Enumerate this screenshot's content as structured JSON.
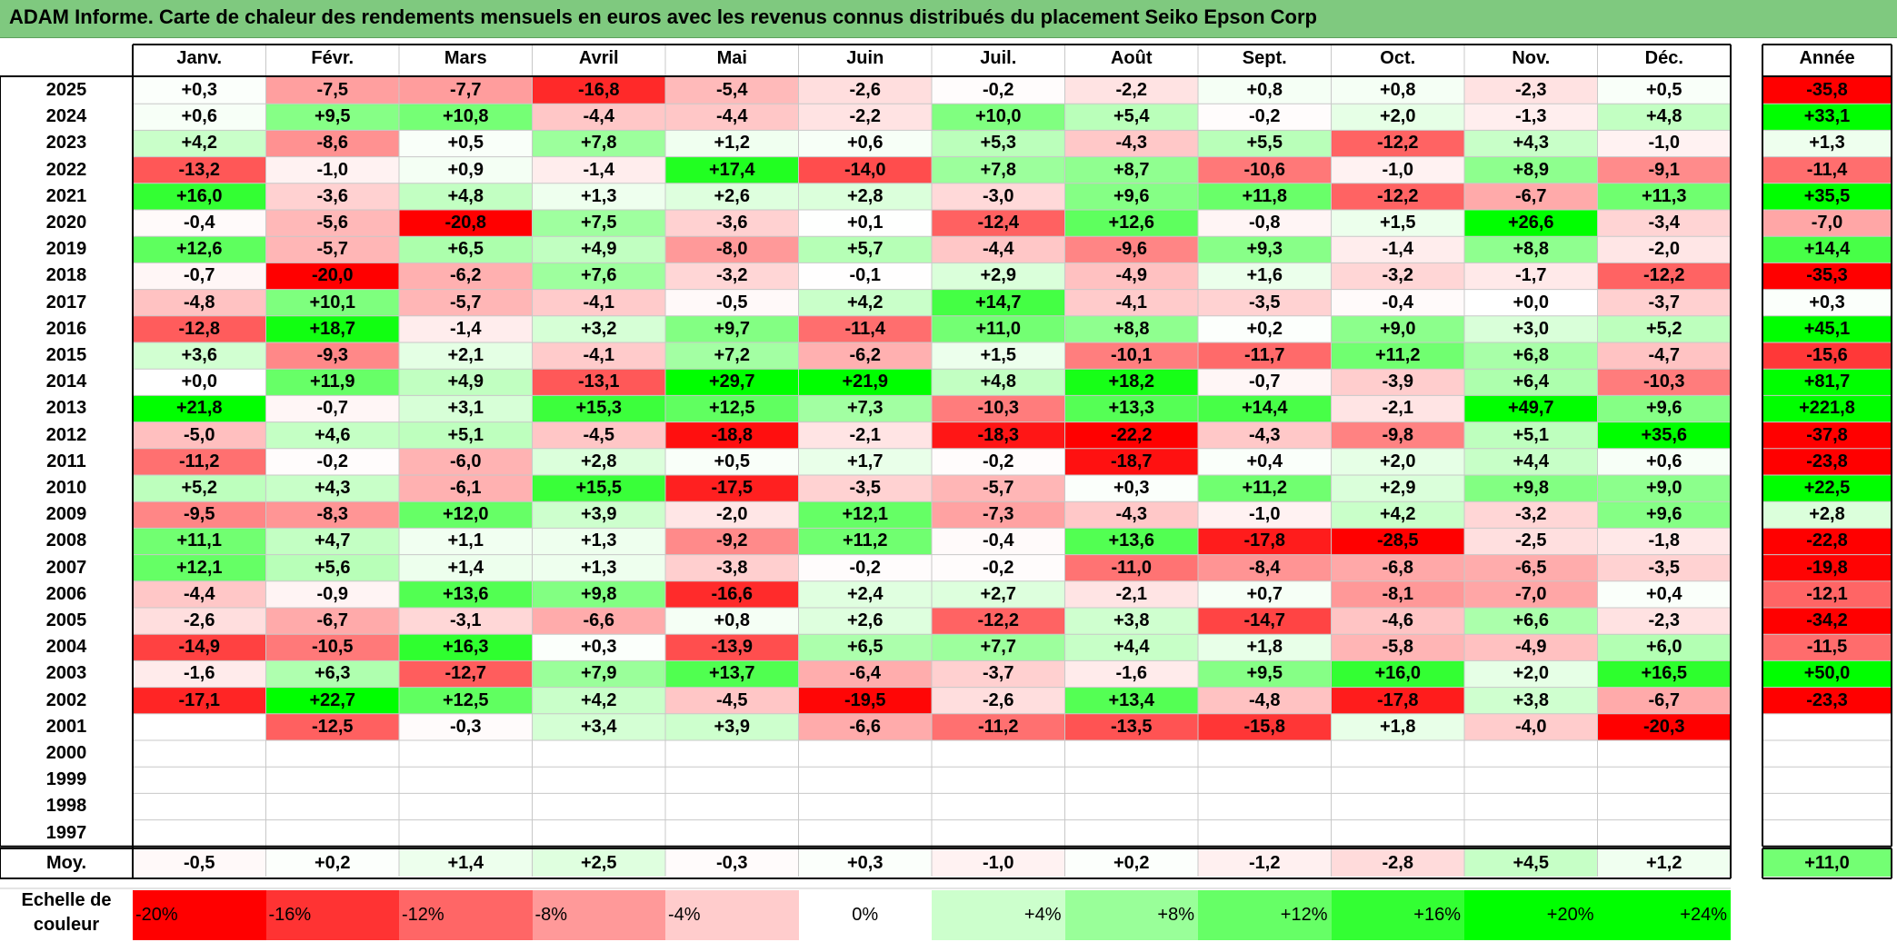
{
  "title": "ADAM Informe. Carte de chaleur des rendements mensuels en euros avec les revenus connus distribués du placement Seiko Epson Corp",
  "chart_data": {
    "type": "heatmap",
    "months": [
      "Janv.",
      "Févr.",
      "Mars",
      "Avril",
      "Mai",
      "Juin",
      "Juil.",
      "Août",
      "Sept.",
      "Oct.",
      "Nov.",
      "Déc."
    ],
    "annual_label": "Année",
    "years": [
      "2025",
      "2024",
      "2023",
      "2022",
      "2021",
      "2020",
      "2019",
      "2018",
      "2017",
      "2016",
      "2015",
      "2014",
      "2013",
      "2012",
      "2011",
      "2010",
      "2009",
      "2008",
      "2007",
      "2006",
      "2005",
      "2004",
      "2003",
      "2002",
      "2001",
      "2000",
      "1999",
      "1998",
      "1997"
    ],
    "values": [
      [
        "+0,3",
        "-7,5",
        "-7,7",
        "-16,8",
        "-5,4",
        "-2,6",
        "-0,2",
        "-2,2",
        "+0,8",
        "+0,8",
        "-2,3",
        "+0,5"
      ],
      [
        "+0,6",
        "+9,5",
        "+10,8",
        "-4,4",
        "-4,4",
        "-2,2",
        "+10,0",
        "+5,4",
        "-0,2",
        "+2,0",
        "-1,3",
        "+4,8"
      ],
      [
        "+4,2",
        "-8,6",
        "+0,5",
        "+7,8",
        "+1,2",
        "+0,6",
        "+5,3",
        "-4,3",
        "+5,5",
        "-12,2",
        "+4,3",
        "-1,0"
      ],
      [
        "-13,2",
        "-1,0",
        "+0,9",
        "-1,4",
        "+17,4",
        "-14,0",
        "+7,8",
        "+8,7",
        "-10,6",
        "-1,0",
        "+8,9",
        "-9,1"
      ],
      [
        "+16,0",
        "-3,6",
        "+4,8",
        "+1,3",
        "+2,6",
        "+2,8",
        "-3,0",
        "+9,6",
        "+11,8",
        "-12,2",
        "-6,7",
        "+11,3"
      ],
      [
        "-0,4",
        "-5,6",
        "-20,8",
        "+7,5",
        "-3,6",
        "+0,1",
        "-12,4",
        "+12,6",
        "-0,8",
        "+1,5",
        "+26,6",
        "-3,4"
      ],
      [
        "+12,6",
        "-5,7",
        "+6,5",
        "+4,9",
        "-8,0",
        "+5,7",
        "-4,4",
        "-9,6",
        "+9,3",
        "-1,4",
        "+8,8",
        "-2,0"
      ],
      [
        "-0,7",
        "-20,0",
        "-6,2",
        "+7,6",
        "-3,2",
        "-0,1",
        "+2,9",
        "-4,9",
        "+1,6",
        "-3,2",
        "-1,7",
        "-12,2"
      ],
      [
        "-4,8",
        "+10,1",
        "-5,7",
        "-4,1",
        "-0,5",
        "+4,2",
        "+14,7",
        "-4,1",
        "-3,5",
        "-0,4",
        "+0,0",
        "-3,7"
      ],
      [
        "-12,8",
        "+18,7",
        "-1,4",
        "+3,2",
        "+9,7",
        "-11,4",
        "+11,0",
        "+8,8",
        "+0,2",
        "+9,0",
        "+3,0",
        "+5,2"
      ],
      [
        "+3,6",
        "-9,3",
        "+2,1",
        "-4,1",
        "+7,2",
        "-6,2",
        "+1,5",
        "-10,1",
        "-11,7",
        "+11,2",
        "+6,8",
        "-4,7"
      ],
      [
        "+0,0",
        "+11,9",
        "+4,9",
        "-13,1",
        "+29,7",
        "+21,9",
        "+4,8",
        "+18,2",
        "-0,7",
        "-3,9",
        "+6,4",
        "-10,3"
      ],
      [
        "+21,8",
        "-0,7",
        "+3,1",
        "+15,3",
        "+12,5",
        "+7,3",
        "-10,3",
        "+13,3",
        "+14,4",
        "-2,1",
        "+49,7",
        "+9,6"
      ],
      [
        "-5,0",
        "+4,6",
        "+5,1",
        "-4,5",
        "-18,8",
        "-2,1",
        "-18,3",
        "-22,2",
        "-4,3",
        "-9,8",
        "+5,1",
        "+35,6"
      ],
      [
        "-11,2",
        "-0,2",
        "-6,0",
        "+2,8",
        "+0,5",
        "+1,7",
        "-0,2",
        "-18,7",
        "+0,4",
        "+2,0",
        "+4,4",
        "+0,6"
      ],
      [
        "+5,2",
        "+4,3",
        "-6,1",
        "+15,5",
        "-17,5",
        "-3,5",
        "-5,7",
        "+0,3",
        "+11,2",
        "+2,9",
        "+9,8",
        "+9,0"
      ],
      [
        "-9,5",
        "-8,3",
        "+12,0",
        "+3,9",
        "-2,0",
        "+12,1",
        "-7,3",
        "-4,3",
        "-1,0",
        "+4,2",
        "-3,2",
        "+9,6"
      ],
      [
        "+11,1",
        "+4,7",
        "+1,1",
        "+1,3",
        "-9,2",
        "+11,2",
        "-0,4",
        "+13,6",
        "-17,8",
        "-28,5",
        "-2,5",
        "-1,8"
      ],
      [
        "+12,1",
        "+5,6",
        "+1,4",
        "+1,3",
        "-3,8",
        "-0,2",
        "-0,2",
        "-11,0",
        "-8,4",
        "-6,8",
        "-6,5",
        "-3,5"
      ],
      [
        "-4,4",
        "-0,9",
        "+13,6",
        "+9,8",
        "-16,6",
        "+2,4",
        "+2,7",
        "-2,1",
        "+0,7",
        "-8,1",
        "-7,0",
        "+0,4"
      ],
      [
        "-2,6",
        "-6,7",
        "-3,1",
        "-6,6",
        "+0,8",
        "+2,6",
        "-12,2",
        "+3,8",
        "-14,7",
        "-4,6",
        "+6,6",
        "-2,3"
      ],
      [
        "-14,9",
        "-10,5",
        "+16,3",
        "+0,3",
        "-13,9",
        "+6,5",
        "+7,7",
        "+4,4",
        "+1,8",
        "-5,8",
        "-4,9",
        "+6,0"
      ],
      [
        "-1,6",
        "+6,3",
        "-12,7",
        "+7,9",
        "+13,7",
        "-6,4",
        "-3,7",
        "-1,6",
        "+9,5",
        "+16,0",
        "+2,0",
        "+16,5"
      ],
      [
        "-17,1",
        "+22,7",
        "+12,5",
        "+4,2",
        "-4,5",
        "-19,5",
        "-2,6",
        "+13,4",
        "-4,8",
        "-17,8",
        "+3,8",
        "-6,7"
      ],
      [
        "",
        "-12,5",
        "-0,3",
        "+3,4",
        "+3,9",
        "-6,6",
        "-11,2",
        "-13,5",
        "-15,8",
        "+1,8",
        "-4,0",
        "-20,3"
      ],
      [
        "",
        "",
        "",
        "",
        "",
        "",
        "",
        "",
        "",
        "",
        "",
        ""
      ],
      [
        "",
        "",
        "",
        "",
        "",
        "",
        "",
        "",
        "",
        "",
        "",
        ""
      ],
      [
        "",
        "",
        "",
        "",
        "",
        "",
        "",
        "",
        "",
        "",
        "",
        ""
      ],
      [
        "",
        "",
        "",
        "",
        "",
        "",
        "",
        "",
        "",
        "",
        "",
        ""
      ]
    ],
    "annual": [
      "-35,8",
      "+33,1",
      "+1,3",
      "-11,4",
      "+35,5",
      "-7,0",
      "+14,4",
      "-35,3",
      "+0,3",
      "+45,1",
      "-15,6",
      "+81,7",
      "+221,8",
      "-37,8",
      "-23,8",
      "+22,5",
      "+2,8",
      "-22,8",
      "-19,8",
      "-12,1",
      "-34,2",
      "-11,5",
      "+50,0",
      "-23,3",
      "",
      "",
      "",
      "",
      ""
    ],
    "average": {
      "label": "Moy.",
      "values": [
        "-0,5",
        "+0,2",
        "+1,4",
        "+2,5",
        "-0,3",
        "+0,3",
        "-1,0",
        "+0,2",
        "-1,2",
        "-2,8",
        "+4,5",
        "+1,2"
      ],
      "annual": "+11,0"
    },
    "color_scale": {
      "label": "Echelle de couleur",
      "steps": [
        "-20%",
        "-16%",
        "-12%",
        "-8%",
        "-4%",
        "0%",
        "+4%",
        "+8%",
        "+12%",
        "+16%",
        "+20%",
        "+24%"
      ],
      "negative_color": "#ff0000",
      "neutral_color": "#ffffff",
      "positive_color": "#00ff00"
    }
  }
}
